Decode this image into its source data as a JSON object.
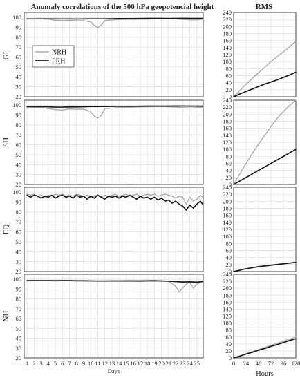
{
  "titles": {
    "left": "Anomaly correlations of the 500 hPa geopotencial height",
    "right": "RMS"
  },
  "legend": {
    "entries": [
      {
        "name": "NRH",
        "color": "#aaaaaa"
      },
      {
        "name": "PRH",
        "color": "#1a1a1a"
      }
    ],
    "location": "upper-left of first panel"
  },
  "chart_data": [
    {
      "panel": "GL",
      "type": "line",
      "metric": "anomaly correlation",
      "xlabel": "",
      "ylabel": "GL",
      "xlim": [
        0.6,
        25.9
      ],
      "ylim": [
        20,
        105
      ],
      "yticks": [
        20,
        30,
        40,
        50,
        60,
        70,
        80,
        90,
        100
      ],
      "grid": true,
      "series": [
        {
          "name": "NRH",
          "color": "#aaaaaa",
          "x": [
            1,
            2,
            3,
            4,
            5,
            6,
            7,
            8,
            9,
            10,
            10.5,
            11,
            11.5,
            12,
            13,
            14,
            15,
            16,
            17,
            18,
            19,
            20,
            21,
            22,
            23,
            24,
            25,
            25.8
          ],
          "values": [
            98.5,
            98.5,
            98.4,
            98.2,
            97,
            96.8,
            97,
            96.5,
            96.8,
            95.5,
            92,
            90,
            92,
            97,
            97.5,
            97.8,
            98,
            98,
            98.2,
            98.3,
            98.5,
            98.6,
            98.6,
            98.5,
            98,
            97.6,
            97.5,
            98.2
          ]
        },
        {
          "name": "PRH",
          "color": "#1a1a1a",
          "x": [
            1,
            2,
            3,
            4,
            5,
            6,
            7,
            8,
            9,
            10,
            11,
            12,
            13,
            14,
            15,
            16,
            17,
            18,
            19,
            20,
            21,
            22,
            23,
            24,
            25,
            25.8
          ],
          "values": [
            98.5,
            98.5,
            98.6,
            98.6,
            98.5,
            98.5,
            98.5,
            98.4,
            98.5,
            98.6,
            98.6,
            98.6,
            98.7,
            98.8,
            98.8,
            98.8,
            98.9,
            99,
            99,
            99,
            98.9,
            99,
            99.1,
            99,
            99,
            99
          ]
        }
      ]
    },
    {
      "panel": "GL",
      "type": "line",
      "metric": "RMS",
      "xlim": [
        0,
        120
      ],
      "ylim": [
        0,
        240
      ],
      "yticks": [
        0,
        20,
        40,
        60,
        80,
        100,
        120,
        140,
        160,
        180,
        200,
        220,
        240
      ],
      "grid": true,
      "series": [
        {
          "name": "NRH",
          "color": "#aaaaaa",
          "x": [
            0,
            12,
            24,
            36,
            48,
            60,
            72,
            84,
            96,
            108,
            120
          ],
          "values": [
            0,
            18,
            36,
            52,
            68,
            84,
            100,
            114,
            128,
            142,
            158
          ]
        },
        {
          "name": "PRH",
          "color": "#1a1a1a",
          "x": [
            0,
            12,
            24,
            36,
            48,
            60,
            72,
            84,
            96,
            108,
            120
          ],
          "values": [
            0,
            8,
            15,
            22,
            29,
            36,
            42,
            48,
            55,
            62,
            70
          ]
        }
      ]
    },
    {
      "panel": "SH",
      "type": "line",
      "metric": "anomaly correlation",
      "xlabel": "",
      "ylabel": "SH",
      "xlim": [
        0.6,
        25.9
      ],
      "ylim": [
        20,
        105
      ],
      "yticks": [
        20,
        30,
        40,
        50,
        60,
        70,
        80,
        90,
        100
      ],
      "grid": true,
      "series": [
        {
          "name": "NRH",
          "color": "#aaaaaa",
          "x": [
            1,
            2,
            3,
            4,
            5,
            6,
            7,
            8,
            9,
            10,
            10.5,
            11,
            11.5,
            12,
            13,
            14,
            15,
            16,
            17,
            18,
            19,
            20,
            21,
            22,
            23,
            24,
            25,
            25.8
          ],
          "values": [
            98,
            98,
            97.8,
            96.5,
            95.5,
            95,
            96.2,
            95.8,
            96,
            93.5,
            89,
            87,
            89.5,
            96.5,
            97,
            97.5,
            97.8,
            98,
            98.2,
            98.3,
            98.5,
            98.5,
            98.3,
            98,
            97.5,
            97,
            97.6,
            98
          ]
        },
        {
          "name": "PRH",
          "color": "#1a1a1a",
          "x": [
            1,
            2,
            3,
            4,
            5,
            6,
            7,
            8,
            9,
            10,
            11,
            12,
            13,
            14,
            15,
            16,
            17,
            18,
            19,
            20,
            21,
            22,
            23,
            24,
            25,
            25.8
          ],
          "values": [
            98.5,
            98.4,
            98.5,
            98.3,
            98,
            98,
            98.2,
            98.2,
            98.4,
            98.5,
            98.5,
            98.6,
            98.7,
            98.8,
            98.8,
            98.8,
            98.9,
            99,
            99,
            99,
            99,
            99.1,
            99.1,
            99,
            99,
            99
          ]
        }
      ]
    },
    {
      "panel": "SH",
      "type": "line",
      "metric": "RMS",
      "xlim": [
        0,
        120
      ],
      "ylim": [
        0,
        240
      ],
      "yticks": [
        0,
        20,
        40,
        60,
        80,
        100,
        120,
        140,
        160,
        180,
        200,
        220,
        240
      ],
      "grid": true,
      "series": [
        {
          "name": "NRH",
          "color": "#aaaaaa",
          "x": [
            0,
            12,
            24,
            36,
            48,
            60,
            72,
            84,
            96,
            108,
            120
          ],
          "values": [
            0,
            30,
            60,
            88,
            115,
            140,
            165,
            188,
            208,
            225,
            240
          ]
        },
        {
          "name": "PRH",
          "color": "#1a1a1a",
          "x": [
            0,
            12,
            24,
            36,
            48,
            60,
            72,
            84,
            96,
            108,
            120
          ],
          "values": [
            0,
            10,
            20,
            30,
            40,
            50,
            60,
            70,
            80,
            90,
            100
          ]
        }
      ]
    },
    {
      "panel": "EQ",
      "type": "line",
      "metric": "anomaly correlation",
      "xlabel": "",
      "ylabel": "EQ",
      "xlim": [
        0.6,
        25.9
      ],
      "ylim": [
        20,
        105
      ],
      "yticks": [
        20,
        30,
        40,
        50,
        60,
        70,
        80,
        90,
        100
      ],
      "grid": true,
      "series": [
        {
          "name": "NRH",
          "color": "#aaaaaa",
          "x": [
            1,
            1.5,
            2,
            2.5,
            3,
            3.5,
            4,
            4.5,
            5,
            5.5,
            6,
            6.5,
            7,
            7.5,
            8,
            8.5,
            9,
            9.5,
            10,
            10.5,
            11,
            11.5,
            12,
            12.5,
            13,
            13.5,
            14,
            14.5,
            15,
            15.5,
            16,
            16.5,
            17,
            17.5,
            18,
            18.5,
            19,
            19.5,
            20,
            20.5,
            21,
            21.5,
            22,
            22.5,
            23,
            23.5,
            24,
            24.5,
            25,
            25.5,
            25.8
          ],
          "values": [
            98,
            97,
            98,
            96,
            97,
            95,
            97,
            96,
            98,
            97,
            98,
            96,
            97,
            96,
            98,
            97,
            96,
            97,
            95,
            96,
            97,
            95,
            97,
            96,
            97,
            98,
            96,
            97,
            98,
            96,
            97,
            98,
            96,
            97,
            98,
            97,
            98,
            96,
            97,
            98,
            97,
            96,
            94,
            96,
            95,
            88,
            95,
            91,
            93,
            97,
            95
          ]
        },
        {
          "name": "PRH",
          "color": "#1a1a1a",
          "x": [
            1,
            1.5,
            2,
            2.5,
            3,
            3.5,
            4,
            4.5,
            5,
            5.5,
            6,
            6.5,
            7,
            7.5,
            8,
            8.5,
            9,
            9.5,
            10,
            10.5,
            11,
            11.5,
            12,
            12.5,
            13,
            13.5,
            14,
            14.5,
            15,
            15.5,
            16,
            16.5,
            17,
            17.5,
            18,
            18.5,
            19,
            19.5,
            20,
            20.5,
            21,
            21.5,
            22,
            22.5,
            23,
            23.5,
            24,
            24.5,
            25,
            25.5,
            25.8
          ],
          "values": [
            97,
            95,
            97,
            96,
            94,
            96,
            95,
            97,
            94,
            96,
            97,
            95,
            96,
            94,
            97,
            95,
            96,
            93,
            96,
            94,
            97,
            95,
            93,
            96,
            95,
            96,
            94,
            96,
            95,
            97,
            95,
            93,
            96,
            94,
            95,
            93,
            95,
            92,
            94,
            91,
            92,
            89,
            91,
            88,
            86,
            82,
            87,
            84,
            88,
            91,
            88
          ]
        }
      ]
    },
    {
      "panel": "EQ",
      "type": "line",
      "metric": "RMS",
      "xlim": [
        0,
        120
      ],
      "ylim": [
        0,
        240
      ],
      "yticks": [
        0,
        20,
        40,
        60,
        80,
        100,
        120,
        140,
        160,
        180,
        200,
        220,
        240
      ],
      "grid": true,
      "series": [
        {
          "name": "NRH",
          "color": "#aaaaaa",
          "x": [
            0,
            12,
            24,
            36,
            48,
            60,
            72,
            84,
            96,
            108,
            120
          ],
          "values": [
            0,
            4,
            8,
            11,
            14,
            17,
            19,
            21,
            23,
            25,
            27
          ]
        },
        {
          "name": "PRH",
          "color": "#1a1a1a",
          "x": [
            0,
            12,
            24,
            36,
            48,
            60,
            72,
            84,
            96,
            108,
            120
          ],
          "values": [
            0,
            4,
            8,
            11,
            14,
            16,
            18,
            20,
            22,
            24,
            26
          ]
        }
      ]
    },
    {
      "panel": "NH",
      "type": "line",
      "metric": "anomaly correlation",
      "xlabel": "Days",
      "ylabel": "NH",
      "xlim": [
        0.6,
        25.9
      ],
      "ylim": [
        20,
        105
      ],
      "xticks": [
        1,
        2,
        3,
        4,
        5,
        6,
        7,
        8,
        9,
        10,
        11,
        12,
        13,
        14,
        15,
        16,
        17,
        18,
        19,
        20,
        21,
        22,
        23,
        24,
        25
      ],
      "yticks": [
        20,
        30,
        40,
        50,
        60,
        70,
        80,
        90,
        100
      ],
      "grid": true,
      "series": [
        {
          "name": "NRH",
          "color": "#aaaaaa",
          "x": [
            1,
            2,
            3,
            4,
            5,
            6,
            7,
            8,
            9,
            10,
            11,
            12,
            13,
            14,
            15,
            16,
            17,
            18,
            19,
            20,
            21,
            22,
            22.5,
            23,
            23.5,
            24,
            24.5,
            25,
            25.8
          ],
          "values": [
            98.8,
            99,
            98.8,
            98.8,
            98.7,
            98.9,
            98.8,
            98.6,
            98.6,
            98.5,
            98.3,
            98.4,
            98.5,
            98.6,
            98.7,
            98.8,
            98.9,
            99,
            98.9,
            98.7,
            98,
            93,
            87,
            91,
            95,
            97,
            91,
            95,
            98
          ]
        },
        {
          "name": "PRH",
          "color": "#1a1a1a",
          "x": [
            1,
            2,
            3,
            4,
            5,
            6,
            7,
            8,
            9,
            10,
            11,
            12,
            13,
            14,
            15,
            16,
            17,
            18,
            19,
            20,
            21,
            22,
            23,
            24,
            25,
            25.8
          ],
          "values": [
            98.5,
            98.6,
            98.6,
            98.6,
            98.5,
            98.6,
            98.6,
            98.4,
            98.4,
            98.3,
            98.2,
            98.2,
            98.3,
            98.2,
            98.3,
            98.2,
            98.1,
            98.3,
            98.4,
            98.2,
            98,
            97.6,
            97.2,
            97.4,
            97,
            97.6
          ]
        }
      ]
    },
    {
      "panel": "NH",
      "type": "line",
      "metric": "RMS",
      "xlabel": "Hours",
      "xlim": [
        0,
        120
      ],
      "ylim": [
        0,
        240
      ],
      "xticks": [
        0,
        24,
        48,
        72,
        96,
        120
      ],
      "yticks": [
        0,
        20,
        40,
        60,
        80,
        100,
        120,
        140,
        160,
        180,
        200,
        220,
        240
      ],
      "grid": true,
      "series": [
        {
          "name": "NRH",
          "color": "#aaaaaa",
          "x": [
            0,
            12,
            24,
            36,
            48,
            60,
            72,
            84,
            96,
            108,
            120
          ],
          "values": [
            0,
            6,
            12,
            18,
            24,
            30,
            36,
            42,
            48,
            54,
            60
          ]
        },
        {
          "name": "PRH",
          "color": "#1a1a1a",
          "x": [
            0,
            12,
            24,
            36,
            48,
            60,
            72,
            84,
            96,
            108,
            120
          ],
          "values": [
            0,
            5,
            11,
            16,
            22,
            27,
            33,
            38,
            44,
            50,
            55
          ]
        }
      ]
    }
  ]
}
